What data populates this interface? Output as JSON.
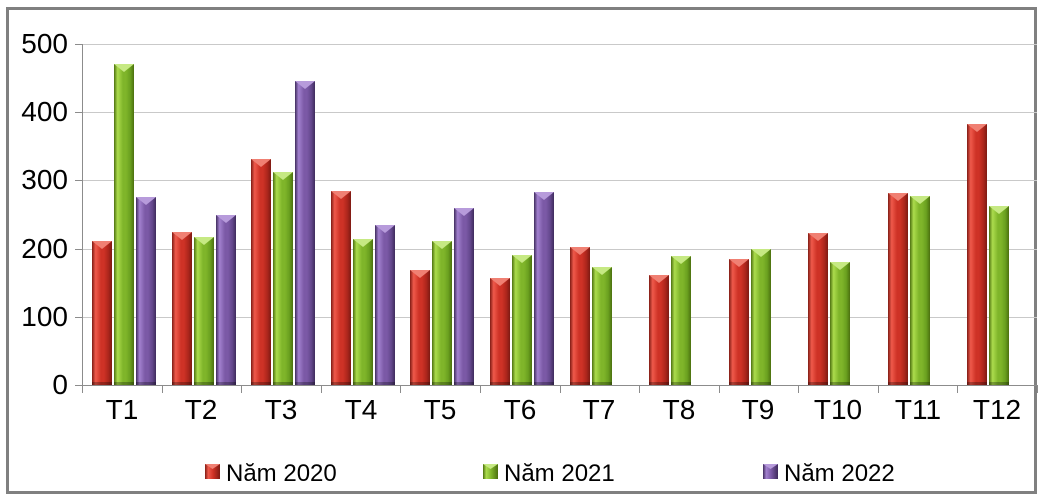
{
  "chart_data": {
    "type": "bar",
    "title": "",
    "categories": [
      "T1",
      "T2",
      "T3",
      "T4",
      "T5",
      "T6",
      "T7",
      "T8",
      "T9",
      "T10",
      "T11",
      "T12"
    ],
    "series": [
      {
        "name": "Năm 2020",
        "values": [
          211,
          224,
          332,
          284,
          169,
          157,
          202,
          162,
          185,
          223,
          281,
          382
        ],
        "colors": {
          "body": "#CE3226",
          "light": "#EF5A4B",
          "shade": "#AC261C",
          "dark": "#7E1A13",
          "cap": "#F08073"
        }
      },
      {
        "name": "Năm 2021",
        "values": [
          471,
          217,
          313,
          214,
          211,
          191,
          173,
          189,
          199,
          181,
          277,
          262
        ],
        "colors": {
          "body": "#7FB52A",
          "light": "#ACDC4D",
          "shade": "#699F1F",
          "dark": "#4C700F",
          "cap": "#C6E983"
        }
      },
      {
        "name": "Năm 2022",
        "values": [
          276,
          249,
          446,
          235,
          259,
          283,
          null,
          null,
          null,
          null,
          null,
          null
        ],
        "colors": {
          "body": "#7B59A6",
          "light": "#A281CF",
          "shade": "#63478C",
          "dark": "#3F2B5C",
          "cap": "#B79BDB"
        }
      }
    ],
    "xlabel": "",
    "ylabel": "",
    "ylim": [
      0,
      500
    ],
    "ytick_step": 100,
    "ytick_labels": [
      "0",
      "100",
      "200",
      "300",
      "400",
      "500"
    ],
    "grid": "horizontal",
    "legend_position": "bottom",
    "axis_color": "#8C8C8C",
    "gridline_color": "#C9C9C9",
    "border_color": "#808080",
    "background_color": "#FFFFFF",
    "text_color": "#000000"
  }
}
